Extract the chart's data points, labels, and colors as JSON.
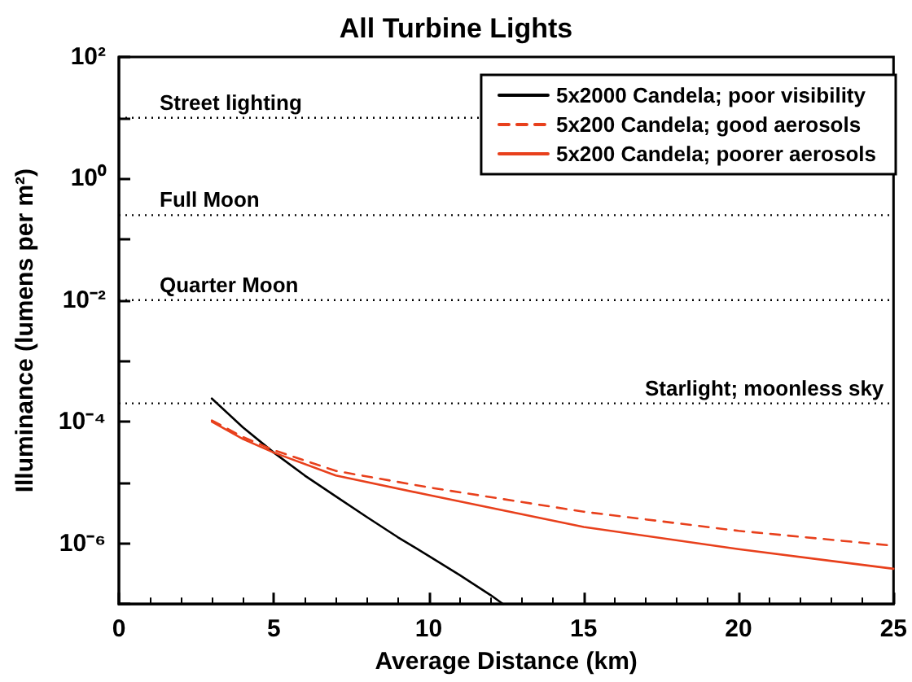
{
  "chart_data": {
    "type": "line",
    "title": "All Turbine Lights",
    "xlabel": "Average Distance (km)",
    "ylabel": "Illuminance (lumens per m²)",
    "series": [
      {
        "name": "5x2000 Candela; poor visibility",
        "color": "#000000",
        "line_style": "solid",
        "x": [
          3,
          4,
          5,
          6,
          7,
          8,
          9,
          10,
          11,
          12,
          12.4
        ],
        "values": [
          0.00024,
          8.1e-05,
          3.1e-05,
          1.3e-05,
          5.9e-06,
          2.7e-06,
          1.26e-06,
          6.2e-07,
          3e-07,
          1.4e-07,
          1e-07
        ]
      },
      {
        "name": "5x200 Candela; good aerosols",
        "color": "#e8401c",
        "line_style": "dashed",
        "x": [
          3,
          4,
          5,
          7,
          10,
          15,
          20,
          25
        ],
        "values": [
          0.000105,
          5.6e-05,
          3.4e-05,
          1.55e-05,
          8.3e-06,
          3.3e-06,
          1.6e-06,
          9.1e-07
        ]
      },
      {
        "name": "5x200 Candela; poorer aerosols",
        "color": "#e8401c",
        "line_style": "solid",
        "x": [
          3,
          4,
          5,
          7,
          10,
          15,
          20,
          25
        ],
        "values": [
          0.0001,
          5.2e-05,
          3.1e-05,
          1.3e-05,
          6.2e-06,
          1.85e-06,
          8e-07,
          3.8e-07
        ]
      }
    ],
    "xlim": [
      0,
      25
    ],
    "xticks": [
      0,
      5,
      10,
      15,
      20,
      25
    ],
    "ylim": [
      1e-07,
      100
    ],
    "log": "y",
    "yticks": [
      {
        "value": 100,
        "label": "10²"
      },
      {
        "value": 10,
        "label": null
      },
      {
        "value": 1,
        "label": "10⁰"
      },
      {
        "value": 0.1,
        "label": null
      },
      {
        "value": 0.01,
        "label": "10⁻²"
      },
      {
        "value": 0.001,
        "label": null
      },
      {
        "value": 0.0001,
        "label": "10⁻⁴"
      },
      {
        "value": 1e-05,
        "label": null
      },
      {
        "value": 1e-06,
        "label": "10⁻⁶"
      },
      {
        "value": 1e-07,
        "label": null
      }
    ],
    "ref_lines": [
      {
        "axis": "y",
        "value": 10,
        "label": "Street lighting",
        "color": "#000000",
        "line_style": "dotted"
      },
      {
        "axis": "y",
        "value": 0.25,
        "label": "Full Moon",
        "color": "#000000",
        "line_style": "dotted"
      },
      {
        "axis": "y",
        "value": 0.01,
        "label": "Quarter Moon",
        "color": "#000000",
        "line_style": "dotted"
      },
      {
        "axis": "y",
        "value": 0.0002,
        "label": "Starlight; moonless sky",
        "color": "#000000",
        "line_style": "dotted"
      }
    ],
    "grid": false,
    "legend": "top right",
    "marker": "none"
  }
}
